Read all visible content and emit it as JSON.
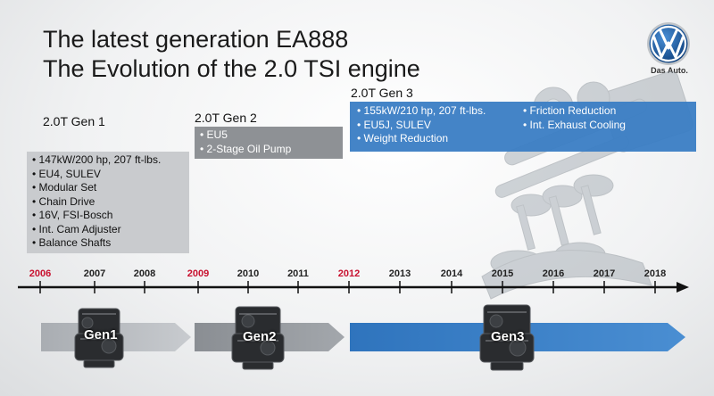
{
  "title": {
    "line1": "The latest generation EA888",
    "line2": "The Evolution of the 2.0 TSI engine"
  },
  "brand": {
    "tagline": "Das Auto.",
    "logo": "vw-logo"
  },
  "gen1": {
    "heading": "2.0T Gen 1",
    "features": [
      "147kW/200 hp, 207 ft-lbs.",
      "EU4, SULEV",
      "Modular Set",
      "Chain Drive",
      "16V, FSI-Bosch",
      "Int. Cam Adjuster",
      "Balance Shafts"
    ],
    "bar_label": "Gen1"
  },
  "gen2": {
    "heading": "2.0T Gen 2",
    "features": [
      "EU5",
      "2-Stage Oil Pump"
    ],
    "bar_label": "Gen2"
  },
  "gen3": {
    "heading": "2.0T Gen 3",
    "features_col1": [
      "155kW/210 hp, 207 ft-lbs.",
      "EU5J, SULEV",
      "Weight Reduction"
    ],
    "features_col2": [
      "Friction Reduction",
      "Int. Exhaust Cooling"
    ],
    "bar_label": "Gen3"
  },
  "timeline": {
    "years": [
      {
        "label": "2006",
        "highlight": true
      },
      {
        "label": "2007",
        "highlight": false
      },
      {
        "label": "2008",
        "highlight": false
      },
      {
        "label": "2009",
        "highlight": true
      },
      {
        "label": "2010",
        "highlight": false
      },
      {
        "label": "2011",
        "highlight": false
      },
      {
        "label": "2012",
        "highlight": true
      },
      {
        "label": "2013",
        "highlight": false
      },
      {
        "label": "2014",
        "highlight": false
      },
      {
        "label": "2015",
        "highlight": false
      },
      {
        "label": "2016",
        "highlight": false
      },
      {
        "label": "2017",
        "highlight": false
      },
      {
        "label": "2018",
        "highlight": false
      }
    ]
  },
  "colors": {
    "highlight_year": "#c8102e",
    "gen1_box": "#c9cbce",
    "gen2_box": "#8e9195",
    "gen3_box": "#3a7dc4"
  }
}
